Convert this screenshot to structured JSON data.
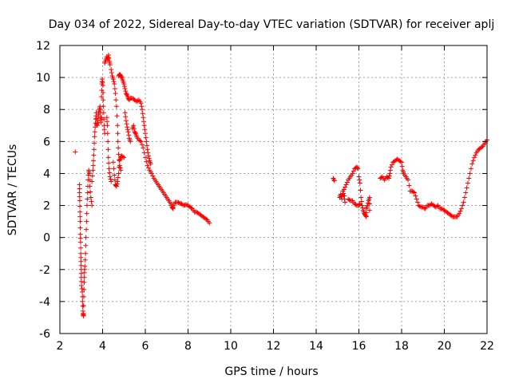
{
  "chart_data": {
    "type": "scatter",
    "title": "Day 034 of 2022, Sidereal Day-to-day VTEC variation (SDTVAR) for receiver aplj",
    "xlabel": "GPS time / hours",
    "ylabel": "SDTVAR / TECUs",
    "xlim": [
      2,
      22
    ],
    "ylim": [
      -6,
      12
    ],
    "xticks": [
      2,
      4,
      6,
      8,
      10,
      12,
      14,
      16,
      18,
      20,
      22
    ],
    "yticks": [
      -6,
      -4,
      -2,
      0,
      2,
      4,
      6,
      8,
      10,
      12
    ],
    "grid": true,
    "marker": "+",
    "color": "#ff0000",
    "series": [
      {
        "name": "SDTVAR",
        "points": [
          [
            2.72,
            5.35
          ],
          [
            2.92,
            3.3
          ],
          [
            2.92,
            2.8
          ],
          [
            2.93,
            2.3
          ],
          [
            2.94,
            1.6
          ],
          [
            2.95,
            1.0
          ],
          [
            2.96,
            0.2
          ],
          [
            2.97,
            -0.3
          ],
          [
            2.98,
            -1.0
          ],
          [
            2.99,
            -1.5
          ],
          [
            3.0,
            -2.0
          ],
          [
            3.0,
            -2.5
          ],
          [
            3.01,
            -3.0
          ],
          [
            3.05,
            -3.4
          ],
          [
            3.06,
            -4.0
          ],
          [
            3.08,
            -4.6
          ],
          [
            3.1,
            -4.9
          ],
          [
            3.1,
            -4.8
          ],
          [
            3.12,
            -3.7
          ],
          [
            3.14,
            -2.8
          ],
          [
            3.15,
            -2.2
          ],
          [
            3.17,
            -1.8
          ],
          [
            3.2,
            -1.0
          ],
          [
            3.22,
            0.0
          ],
          [
            3.25,
            1.0
          ],
          [
            3.27,
            2.0
          ],
          [
            3.3,
            2.8
          ],
          [
            3.32,
            3.6
          ],
          [
            3.35,
            4.2
          ],
          [
            3.38,
            4.0
          ],
          [
            3.4,
            3.2
          ],
          [
            3.45,
            2.5
          ],
          [
            3.5,
            2.0
          ],
          [
            3.5,
            3.5
          ],
          [
            3.55,
            4.2
          ],
          [
            3.57,
            4.8
          ],
          [
            3.6,
            5.5
          ],
          [
            3.62,
            6.3
          ],
          [
            3.65,
            6.9
          ],
          [
            3.68,
            7.4
          ],
          [
            3.7,
            7.8
          ],
          [
            3.72,
            7.1
          ],
          [
            3.75,
            7.0
          ],
          [
            3.78,
            7.3
          ],
          [
            3.8,
            7.6
          ],
          [
            3.82,
            7.8
          ],
          [
            3.85,
            8.0
          ],
          [
            3.88,
            8.2
          ],
          [
            3.9,
            7.8
          ],
          [
            3.92,
            7.2
          ],
          [
            3.95,
            7.5
          ],
          [
            3.95,
            8.8
          ],
          [
            3.97,
            9.6
          ],
          [
            3.98,
            9.9
          ],
          [
            4.02,
            9.5
          ],
          [
            4.03,
            8.6
          ],
          [
            4.05,
            7.8
          ],
          [
            4.07,
            7.0
          ],
          [
            4.1,
            6.5
          ],
          [
            4.1,
            10.9
          ],
          [
            4.15,
            11.1
          ],
          [
            4.2,
            11.3
          ],
          [
            4.25,
            11.1
          ],
          [
            4.28,
            11.4
          ],
          [
            4.32,
            11.0
          ],
          [
            4.35,
            10.8
          ],
          [
            4.2,
            7.5
          ],
          [
            4.22,
            7.0
          ],
          [
            4.25,
            6.0
          ],
          [
            4.27,
            5.0
          ],
          [
            4.3,
            4.3
          ],
          [
            4.35,
            3.8
          ],
          [
            4.4,
            3.5
          ],
          [
            4.4,
            10.5
          ],
          [
            4.45,
            10.1
          ],
          [
            4.5,
            9.9
          ],
          [
            4.55,
            9.6
          ],
          [
            4.6,
            9.0
          ],
          [
            4.65,
            8.2
          ],
          [
            4.7,
            7.0
          ],
          [
            4.72,
            6.0
          ],
          [
            4.75,
            5.2
          ],
          [
            4.8,
            4.5
          ],
          [
            4.85,
            4.2
          ],
          [
            4.5,
            4.7
          ],
          [
            4.55,
            3.9
          ],
          [
            4.6,
            3.3
          ],
          [
            4.65,
            3.2
          ],
          [
            4.7,
            3.5
          ],
          [
            4.75,
            4.0
          ],
          [
            4.8,
            4.8
          ],
          [
            4.85,
            5.0
          ],
          [
            4.9,
            5.1
          ],
          [
            5.0,
            5.0
          ],
          [
            4.75,
            10.1
          ],
          [
            4.8,
            10.2
          ],
          [
            4.85,
            10.1
          ],
          [
            4.9,
            10.0
          ],
          [
            4.95,
            9.8
          ],
          [
            5.0,
            9.6
          ],
          [
            5.05,
            9.3
          ],
          [
            5.1,
            9.0
          ],
          [
            5.15,
            8.9
          ],
          [
            5.2,
            8.7
          ],
          [
            5.25,
            8.6
          ],
          [
            5.05,
            7.8
          ],
          [
            5.1,
            7.3
          ],
          [
            5.15,
            6.9
          ],
          [
            5.2,
            6.6
          ],
          [
            5.25,
            6.2
          ],
          [
            5.3,
            6.0
          ],
          [
            5.3,
            8.7
          ],
          [
            5.4,
            8.7
          ],
          [
            5.5,
            8.6
          ],
          [
            5.6,
            8.5
          ],
          [
            5.7,
            8.6
          ],
          [
            5.8,
            8.4
          ],
          [
            5.85,
            8.0
          ],
          [
            5.9,
            7.5
          ],
          [
            5.95,
            7.0
          ],
          [
            6.0,
            6.5
          ],
          [
            6.05,
            6.0
          ],
          [
            6.1,
            5.5
          ],
          [
            6.15,
            5.1
          ],
          [
            6.2,
            4.8
          ],
          [
            6.25,
            4.6
          ],
          [
            5.4,
            6.8
          ],
          [
            5.45,
            7.0
          ],
          [
            5.5,
            6.6
          ],
          [
            5.55,
            6.5
          ],
          [
            5.6,
            6.3
          ],
          [
            5.7,
            6.1
          ],
          [
            5.8,
            6.0
          ],
          [
            5.9,
            5.6
          ],
          [
            6.0,
            5.0
          ],
          [
            6.1,
            4.5
          ],
          [
            6.2,
            4.2
          ],
          [
            6.3,
            4.0
          ],
          [
            6.4,
            3.7
          ],
          [
            6.5,
            3.5
          ],
          [
            6.6,
            3.3
          ],
          [
            6.7,
            3.1
          ],
          [
            6.8,
            2.9
          ],
          [
            6.9,
            2.7
          ],
          [
            7.0,
            2.5
          ],
          [
            7.1,
            2.3
          ],
          [
            7.2,
            2.1
          ],
          [
            7.25,
            1.9
          ],
          [
            7.3,
            1.8
          ],
          [
            7.3,
            2.0
          ],
          [
            7.4,
            2.2
          ],
          [
            7.5,
            2.2
          ],
          [
            7.6,
            2.15
          ],
          [
            7.7,
            2.1
          ],
          [
            7.8,
            2.0
          ],
          [
            7.9,
            2.05
          ],
          [
            8.0,
            2.0
          ],
          [
            8.1,
            1.9
          ],
          [
            8.2,
            1.8
          ],
          [
            8.3,
            1.6
          ],
          [
            8.4,
            1.6
          ],
          [
            8.5,
            1.5
          ],
          [
            8.6,
            1.4
          ],
          [
            8.7,
            1.3
          ],
          [
            8.8,
            1.2
          ],
          [
            8.9,
            1.1
          ],
          [
            9.0,
            0.9
          ],
          [
            14.8,
            3.7
          ],
          [
            14.85,
            3.55
          ],
          [
            15.1,
            2.5
          ],
          [
            15.15,
            2.7
          ],
          [
            15.2,
            2.4
          ],
          [
            15.25,
            2.9
          ],
          [
            15.3,
            2.6
          ],
          [
            15.35,
            2.2
          ],
          [
            15.3,
            3.0
          ],
          [
            15.4,
            3.3
          ],
          [
            15.5,
            3.6
          ],
          [
            15.6,
            3.8
          ],
          [
            15.7,
            4.0
          ],
          [
            15.8,
            4.3
          ],
          [
            15.9,
            4.4
          ],
          [
            15.95,
            4.3
          ],
          [
            15.5,
            2.4
          ],
          [
            15.6,
            2.3
          ],
          [
            15.7,
            2.3
          ],
          [
            15.8,
            2.1
          ],
          [
            15.9,
            2.0
          ],
          [
            16.0,
            2.0
          ],
          [
            16.05,
            2.1
          ],
          [
            16.0,
            3.8
          ],
          [
            16.05,
            3.4
          ],
          [
            16.1,
            2.5
          ],
          [
            16.15,
            2.0
          ],
          [
            16.2,
            1.7
          ],
          [
            16.25,
            1.5
          ],
          [
            16.3,
            1.4
          ],
          [
            16.35,
            1.3
          ],
          [
            16.35,
            1.8
          ],
          [
            16.4,
            2.0
          ],
          [
            16.45,
            2.3
          ],
          [
            16.5,
            2.5
          ],
          [
            16.5,
            1.7
          ],
          [
            17.0,
            3.7
          ],
          [
            17.1,
            3.8
          ],
          [
            17.2,
            3.6
          ],
          [
            17.3,
            3.8
          ],
          [
            17.4,
            3.7
          ],
          [
            17.45,
            4.0
          ],
          [
            17.5,
            4.4
          ],
          [
            17.6,
            4.7
          ],
          [
            17.7,
            4.8
          ],
          [
            17.8,
            4.9
          ],
          [
            17.9,
            4.8
          ],
          [
            18.0,
            4.7
          ],
          [
            18.05,
            4.2
          ],
          [
            18.1,
            4.0
          ],
          [
            18.2,
            3.8
          ],
          [
            18.3,
            3.6
          ],
          [
            18.4,
            2.9
          ],
          [
            18.5,
            2.9
          ],
          [
            18.6,
            2.8
          ],
          [
            18.7,
            2.4
          ],
          [
            18.8,
            2.0
          ],
          [
            18.9,
            1.9
          ],
          [
            19.0,
            1.9
          ],
          [
            19.1,
            1.8
          ],
          [
            19.2,
            2.0
          ],
          [
            19.3,
            2.0
          ],
          [
            19.4,
            2.1
          ],
          [
            19.5,
            2.0
          ],
          [
            19.6,
            1.9
          ],
          [
            19.7,
            2.0
          ],
          [
            19.8,
            1.8
          ],
          [
            19.9,
            1.8
          ],
          [
            20.0,
            1.7
          ],
          [
            20.1,
            1.6
          ],
          [
            20.2,
            1.5
          ],
          [
            20.3,
            1.4
          ],
          [
            20.4,
            1.3
          ],
          [
            20.5,
            1.3
          ],
          [
            20.6,
            1.3
          ],
          [
            20.7,
            1.5
          ],
          [
            20.8,
            1.8
          ],
          [
            20.9,
            2.2
          ],
          [
            21.0,
            2.8
          ],
          [
            21.1,
            3.4
          ],
          [
            21.2,
            4.0
          ],
          [
            21.3,
            4.6
          ],
          [
            21.4,
            5.0
          ],
          [
            21.5,
            5.3
          ],
          [
            21.6,
            5.5
          ],
          [
            21.7,
            5.6
          ],
          [
            21.8,
            5.7
          ],
          [
            21.9,
            5.9
          ],
          [
            22.0,
            6.1
          ]
        ]
      }
    ]
  }
}
